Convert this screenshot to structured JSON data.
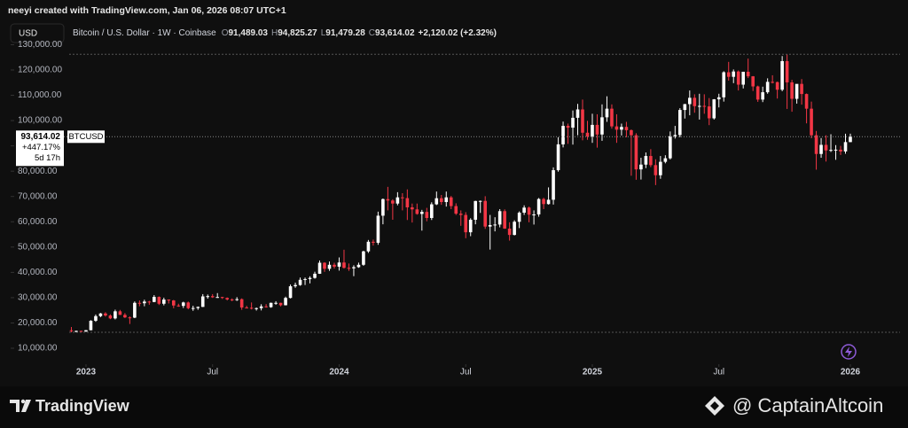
{
  "header": {
    "credit": "neeyi created with TradingView.com, Jan 06, 2026 08:07 UTC+1",
    "currency": "USD",
    "symbol": "Bitcoin / U.S. Dollar · 1W · Coinbase",
    "ohlc": [
      {
        "key": "O",
        "text": "91,489.03"
      },
      {
        "key": "H",
        "text": "94,825.27"
      },
      {
        "key": "L",
        "text": "91,479.28"
      },
      {
        "key": "C",
        "text": "93,614.02"
      }
    ],
    "change": "+2,120.02 (+2.32%)"
  },
  "chart_data": {
    "type": "candlestick",
    "ticker": "BTCUSD",
    "up_color": "#ffffff",
    "down_color": "#f23645",
    "last_label": {
      "price": "93,614.02",
      "change": "+447.17%",
      "countdown": "5d 17h"
    },
    "ylim": [
      5800,
      131900
    ],
    "yticks": [
      {
        "value": 10000,
        "label": "10,000.00"
      },
      {
        "value": 20000,
        "label": "20,000.00"
      },
      {
        "value": 30000,
        "label": "30,000.00"
      },
      {
        "value": 40000,
        "label": "40,000.00"
      },
      {
        "value": 50000,
        "label": "50,000.00"
      },
      {
        "value": 60000,
        "label": "60,000.00"
      },
      {
        "value": 70000,
        "label": "70,000.00"
      },
      {
        "value": 80000,
        "label": "80,000.00"
      },
      {
        "value": 90000,
        "label": "90,000.00"
      },
      {
        "value": 100000,
        "label": "100,000.00"
      },
      {
        "value": 110000,
        "label": "110,000.00"
      },
      {
        "value": 120000,
        "label": "120,000.00"
      },
      {
        "value": 130000,
        "label": "130,000.00"
      }
    ],
    "xlim": [
      -14.66,
      170.2
    ],
    "xticks": [
      {
        "value": 3,
        "label": "2023"
      },
      {
        "value": 29,
        "label": "Jul"
      },
      {
        "value": 55,
        "label": "2024"
      },
      {
        "value": 81,
        "label": "Jul"
      },
      {
        "value": 107,
        "label": "2025"
      },
      {
        "value": 133,
        "label": "Jul"
      },
      {
        "value": 160,
        "label": "2026"
      }
    ],
    "open": [
      17100,
      16800,
      16850,
      16600,
      17130,
      20880,
      22700,
      23750,
      22950,
      21800,
      24600,
      23200,
      22200,
      22100,
      27950,
      27800,
      28450,
      28300,
      30300,
      27600,
      29250,
      28900,
      26900,
      26750,
      28100,
      25850,
      25900,
      26350,
      30500,
      30600,
      30150,
      30250,
      29900,
      29300,
      29050,
      29400,
      26100,
      26000,
      25850,
      25850,
      26550,
      26250,
      27950,
      27950,
      27000,
      29900,
      34500,
      35000,
      37050,
      37350,
      37800,
      39450,
      43800,
      41400,
      43000,
      42250,
      43900,
      41800,
      41600,
      42050,
      43000,
      48300,
      52100,
      51700,
      62400,
      68950,
      68400,
      67200,
      69650,
      69350,
      65700,
      64900,
      63100,
      63900,
      61500,
      66900,
      69300,
      67800,
      69650,
      66200,
      63200,
      62700,
      55850,
      60800,
      68200,
      68250,
      58100,
      58700,
      58900,
      64200,
      57300,
      54800,
      60000,
      63600,
      65600,
      62800,
      62900,
      69000,
      67000,
      68700,
      80400,
      90600,
      97900,
      97200,
      101100,
      104400,
      95200,
      93700,
      98300,
      94500,
      101300,
      104700,
      97700,
      96400,
      97500,
      96200,
      94200,
      80700,
      82600,
      86000,
      82400,
      78400,
      83700,
      85100,
      93800,
      94300,
      104200,
      106500,
      109000,
      105700,
      105800,
      105600,
      100900,
      108400,
      109200,
      119100,
      117300,
      119400,
      114200,
      119300,
      117500,
      113500,
      108300,
      111200,
      115300,
      115200,
      112200,
      123500,
      115100,
      108600,
      114500,
      110500,
      104700,
      94200,
      86800,
      90400,
      88200,
      88400,
      88500,
      87800,
      91489.03
    ],
    "high": [
      18400,
      17000,
      16950,
      17200,
      21100,
      23350,
      23950,
      24250,
      23400,
      25250,
      25150,
      23900,
      22600,
      28500,
      28900,
      29200,
      28750,
      31000,
      30500,
      30000,
      29300,
      29100,
      27600,
      28400,
      28450,
      26800,
      26500,
      31400,
      31250,
      31400,
      31800,
      30350,
      30100,
      29700,
      30200,
      29700,
      26800,
      28100,
      26100,
      27400,
      27450,
      28050,
      28600,
      28000,
      30400,
      35200,
      35950,
      37950,
      37950,
      38450,
      40250,
      44700,
      44000,
      44300,
      43800,
      45900,
      48950,
      43500,
      42800,
      43850,
      48550,
      52800,
      52950,
      64000,
      69200,
      73800,
      68900,
      71700,
      71300,
      72800,
      67200,
      67200,
      64700,
      65500,
      67700,
      71950,
      70600,
      71950,
      70200,
      67300,
      64500,
      63800,
      61400,
      68300,
      68400,
      70100,
      62700,
      61800,
      65000,
      64900,
      59800,
      60600,
      64100,
      66500,
      66000,
      64500,
      69400,
      69500,
      73600,
      81500,
      93400,
      99600,
      98800,
      104000,
      106600,
      108300,
      99900,
      102700,
      102500,
      106400,
      109600,
      106400,
      102500,
      98800,
      99500,
      96500,
      95000,
      85300,
      87400,
      88700,
      84700,
      86000,
      86300,
      95700,
      97900,
      104900,
      106600,
      111900,
      110400,
      110600,
      110400,
      108900,
      108500,
      110600,
      119500,
      123200,
      120200,
      119800,
      119300,
      124500,
      117600,
      113800,
      113400,
      116700,
      117900,
      115400,
      125500,
      126200,
      116100,
      114000,
      116400,
      110700,
      107500,
      95900,
      93100,
      94200,
      94600,
      90300,
      90000,
      94800,
      94825.27
    ],
    "low": [
      16300,
      16300,
      16400,
      16500,
      17100,
      20450,
      22300,
      22500,
      21500,
      21400,
      23150,
      21950,
      19600,
      21900,
      26600,
      26600,
      27200,
      28200,
      27100,
      26950,
      27700,
      25800,
      26400,
      25900,
      25400,
      24800,
      25200,
      26300,
      29600,
      29900,
      29900,
      29500,
      28900,
      28600,
      28700,
      25200,
      25800,
      25350,
      24900,
      24950,
      26050,
      26000,
      27200,
      26550,
      26950,
      29700,
      33900,
      34700,
      35000,
      35650,
      37500,
      39400,
      40200,
      40600,
      41500,
      40700,
      41500,
      40600,
      38500,
      41800,
      42600,
      47700,
      50600,
      50900,
      59000,
      64500,
      60800,
      66500,
      64500,
      60700,
      59700,
      62800,
      56500,
      60200,
      60700,
      66600,
      66700,
      66000,
      65000,
      62700,
      58400,
      53500,
      54300,
      59000,
      63500,
      57200,
      49000,
      56200,
      57800,
      57200,
      52550,
      54600,
      57500,
      62700,
      59800,
      58900,
      62000,
      65000,
      66800,
      66800,
      79800,
      89400,
      90800,
      90500,
      94200,
      92200,
      92400,
      91200,
      89300,
      92000,
      99500,
      96800,
      91200,
      94100,
      93400,
      78200,
      76600,
      76700,
      81200,
      81600,
      74500,
      77000,
      83100,
      84600,
      92900,
      93400,
      100800,
      102100,
      103100,
      100400,
      102700,
      98200,
      100400,
      105200,
      107500,
      115800,
      114800,
      111900,
      112700,
      116800,
      111700,
      107400,
      107300,
      110600,
      114700,
      108700,
      111600,
      104600,
      103500,
      106700,
      106300,
      98900,
      93000,
      80600,
      85300,
      83800,
      87600,
      84500,
      86400,
      86900,
      91479.28
    ],
    "close": [
      16800,
      16850,
      16600,
      17130,
      20880,
      22700,
      23750,
      22950,
      21800,
      24600,
      23200,
      22200,
      22100,
      27950,
      27800,
      28450,
      28300,
      30300,
      27600,
      29250,
      28900,
      26900,
      26750,
      28100,
      25850,
      25900,
      26350,
      30500,
      30600,
      30150,
      30250,
      29900,
      29300,
      29050,
      29400,
      26100,
      26000,
      25850,
      25850,
      26550,
      26250,
      27950,
      27950,
      27000,
      29900,
      34500,
      35000,
      37050,
      37350,
      37800,
      39450,
      43800,
      41400,
      43000,
      42250,
      43900,
      41800,
      41600,
      42050,
      43000,
      48300,
      52100,
      51700,
      62400,
      68950,
      68400,
      67200,
      69650,
      69350,
      65700,
      64900,
      63100,
      63900,
      61500,
      66900,
      69300,
      67800,
      69650,
      66200,
      63200,
      62700,
      55850,
      60800,
      68200,
      68250,
      58100,
      58700,
      58900,
      64200,
      57300,
      54800,
      60000,
      63600,
      65600,
      62800,
      62900,
      69000,
      67000,
      68700,
      80400,
      90600,
      97900,
      97200,
      101100,
      104400,
      95200,
      93700,
      98300,
      94500,
      101300,
      104700,
      97700,
      96400,
      97500,
      96200,
      94200,
      80700,
      82600,
      86000,
      82400,
      78400,
      83700,
      85100,
      93800,
      94300,
      104200,
      106500,
      109000,
      105700,
      105800,
      105600,
      100900,
      108400,
      109200,
      119100,
      117300,
      119400,
      114200,
      119300,
      117500,
      113500,
      108300,
      111200,
      115300,
      115200,
      112200,
      123500,
      115100,
      108600,
      114500,
      110500,
      104700,
      94200,
      86800,
      90400,
      88200,
      88400,
      88500,
      87800,
      91489.03,
      93614.02
    ]
  },
  "footer": {
    "brand": "TradingView",
    "watermark": "@ CaptainAltcoin"
  }
}
